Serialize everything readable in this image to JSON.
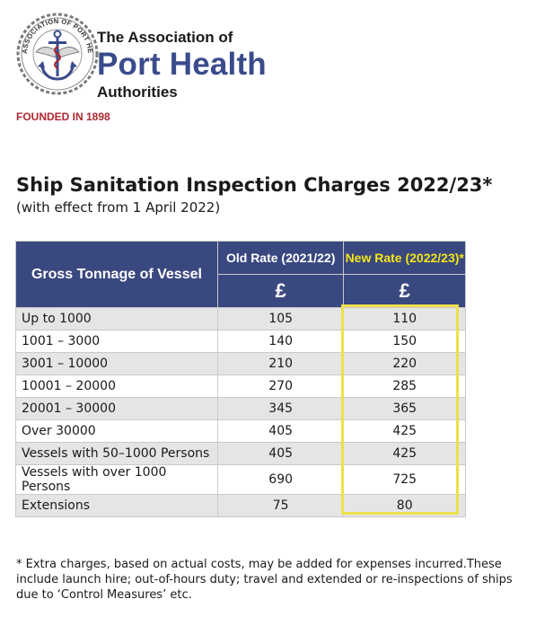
{
  "header": {
    "org_line1": "The Association of",
    "org_line2": "Port Health",
    "org_line3": "Authorities",
    "founded": "FOUNDED IN 1898",
    "seal_text": "ASSOCIATION OF PORT HEALTH AUTHORITIES"
  },
  "document": {
    "title": "Ship Sanitation Inspection Charges 2022/23*",
    "subtitle": "(with effect from 1 April 2022)"
  },
  "table": {
    "col_gross": "Gross Tonnage of Vessel",
    "col_old": "Old Rate (2021/22)",
    "col_new": "New Rate (2022/23)*",
    "currency_old": "£",
    "currency_new": "£",
    "rows": [
      {
        "label": "Up to 1000",
        "old": "105",
        "new": "110"
      },
      {
        "label": "1001 – 3000",
        "old": "140",
        "new": "150"
      },
      {
        "label": "3001 – 10000",
        "old": "210",
        "new": "220"
      },
      {
        "label": "10001 – 20000",
        "old": "270",
        "new": "285"
      },
      {
        "label": "20001 – 30000",
        "old": "345",
        "new": "365"
      },
      {
        "label": "Over 30000",
        "old": "405",
        "new": "425"
      },
      {
        "label": "Vessels with 50–1000 Persons",
        "old": "405",
        "new": "425"
      },
      {
        "label": "Vessels with over 1000 Persons",
        "old": "690",
        "new": "725"
      },
      {
        "label": "Extensions",
        "old": "75",
        "new": "80"
      }
    ]
  },
  "footnote": "* Extra charges, based on actual costs, may be added for expenses incurred.These include launch hire; out-of-hours duty; travel and extended or re-inspections of ships due to ‘Control Measures’ etc.",
  "colors": {
    "header_bg": "#3a4880",
    "new_rate_text": "#f3e617",
    "highlight_border": "#eee04a",
    "brand_blue": "#3a4b8c",
    "founded_red": "#b0262e",
    "row_alt": "#e5e5e5"
  }
}
